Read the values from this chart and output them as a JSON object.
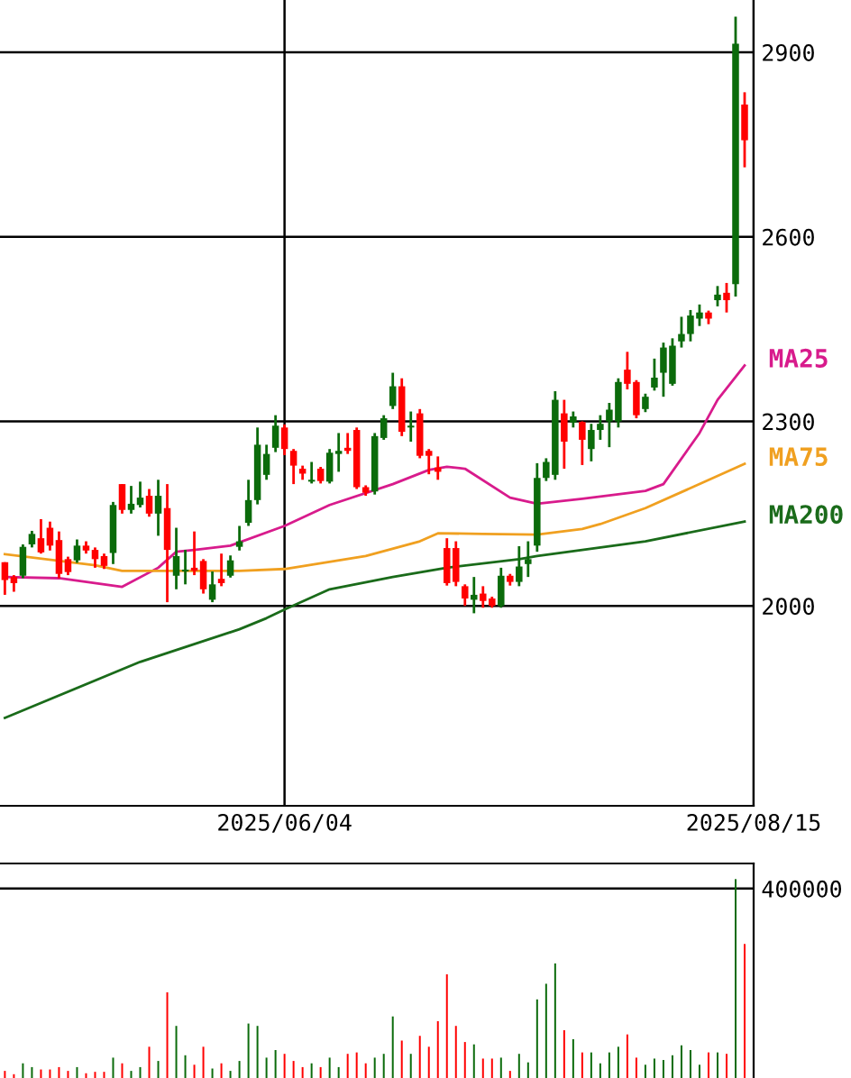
{
  "chart_data": [
    {
      "type": "candlestick",
      "categories": [
        null,
        null,
        null,
        null,
        null,
        null,
        null,
        null,
        null,
        null,
        null,
        null,
        null,
        null,
        null,
        null,
        null,
        null,
        null,
        null,
        null,
        null,
        null,
        null,
        null,
        null,
        null,
        null,
        null,
        null,
        null,
        "2025/06/04",
        null,
        null,
        null,
        null,
        null,
        null,
        null,
        null,
        null,
        null,
        null,
        null,
        null,
        null,
        null,
        null,
        null,
        null,
        null,
        null,
        null,
        null,
        null,
        null,
        null,
        null,
        null,
        null,
        null,
        null,
        null,
        null,
        null,
        null,
        null,
        null,
        null,
        null,
        null,
        null,
        null,
        null,
        null,
        null,
        null,
        null,
        null,
        null,
        null,
        null,
        null,
        "2025/08/15"
      ],
      "ohlc": [
        [
          2071,
          2071,
          2018,
          2042
        ],
        [
          2047,
          2050,
          2023,
          2037
        ],
        [
          2049,
          2100,
          2045,
          2096
        ],
        [
          2100,
          2122,
          2095,
          2117
        ],
        [
          2110,
          2141,
          2085,
          2087
        ],
        [
          2127,
          2137,
          2090,
          2098
        ],
        [
          2107,
          2121,
          2045,
          2052
        ],
        [
          2076,
          2080,
          2050,
          2055
        ],
        [
          2074,
          2108,
          2070,
          2098
        ],
        [
          2098,
          2105,
          2085,
          2090
        ],
        [
          2091,
          2095,
          2062,
          2076
        ],
        [
          2081,
          2085,
          2060,
          2065
        ],
        [
          2086,
          2169,
          2068,
          2164
        ],
        [
          2198,
          2198,
          2150,
          2156
        ],
        [
          2156,
          2195,
          2150,
          2166
        ],
        [
          2164,
          2202,
          2160,
          2176
        ],
        [
          2179,
          2190,
          2145,
          2150
        ],
        [
          2150,
          2205,
          2114,
          2179
        ],
        [
          2159,
          2198,
          2006,
          2091
        ],
        [
          2049,
          2127,
          2027,
          2081
        ],
        [
          2056,
          2091,
          2035,
          2059
        ],
        [
          2062,
          2121,
          2050,
          2057
        ],
        [
          2073,
          2076,
          2020,
          2027
        ],
        [
          2010,
          2056,
          2006,
          2035
        ],
        [
          2044,
          2085,
          2032,
          2037
        ],
        [
          2049,
          2082,
          2046,
          2074
        ],
        [
          2096,
          2130,
          2090,
          2105
        ],
        [
          2135,
          2205,
          2130,
          2172
        ],
        [
          2172,
          2290,
          2165,
          2262
        ],
        [
          2213,
          2262,
          2205,
          2247
        ],
        [
          2257,
          2310,
          2250,
          2293
        ],
        [
          2290,
          2295,
          2245,
          2255
        ],
        [
          2252,
          2255,
          2198,
          2228
        ],
        [
          2223,
          2228,
          2205,
          2215
        ],
        [
          2202,
          2234,
          2199,
          2205
        ],
        [
          2223,
          2226,
          2199,
          2203
        ],
        [
          2202,
          2255,
          2199,
          2249
        ],
        [
          2247,
          2281,
          2218,
          2252
        ],
        [
          2257,
          2281,
          2247,
          2252
        ],
        [
          2286,
          2290,
          2190,
          2193
        ],
        [
          2193,
          2196,
          2179,
          2184
        ],
        [
          2186,
          2281,
          2181,
          2276
        ],
        [
          2273,
          2310,
          2270,
          2305
        ],
        [
          2325,
          2379,
          2320,
          2357
        ],
        [
          2357,
          2370,
          2276,
          2283
        ],
        [
          2290,
          2316,
          2267,
          2293
        ],
        [
          2313,
          2320,
          2240,
          2244
        ],
        [
          2252,
          2255,
          2214,
          2244
        ],
        [
          2225,
          2243,
          2205,
          2218
        ],
        [
          2094,
          2110,
          2033,
          2037
        ],
        [
          2094,
          2105,
          2032,
          2039
        ],
        [
          2032,
          2035,
          2000,
          2012
        ],
        [
          2010,
          2047,
          1988,
          2018
        ],
        [
          2020,
          2032,
          1997,
          2008
        ],
        [
          2012,
          2015,
          1997,
          2000
        ],
        [
          2000,
          2062,
          1997,
          2049
        ],
        [
          2049,
          2052,
          2033,
          2039
        ],
        [
          2039,
          2097,
          2032,
          2064
        ],
        [
          2068,
          2105,
          2047,
          2076
        ],
        [
          2098,
          2232,
          2088,
          2208
        ],
        [
          2208,
          2240,
          2203,
          2234
        ],
        [
          2213,
          2349,
          2205,
          2335
        ],
        [
          2313,
          2335,
          2223,
          2267
        ],
        [
          2298,
          2316,
          2290,
          2308
        ],
        [
          2299,
          2300,
          2229,
          2270
        ],
        [
          2255,
          2296,
          2235,
          2286
        ],
        [
          2286,
          2310,
          2270,
          2296
        ],
        [
          2300,
          2330,
          2258,
          2319
        ],
        [
          2300,
          2370,
          2290,
          2364
        ],
        [
          2384,
          2413,
          2352,
          2361
        ],
        [
          2364,
          2367,
          2305,
          2310
        ],
        [
          2320,
          2345,
          2315,
          2340
        ],
        [
          2355,
          2402,
          2350,
          2371
        ],
        [
          2379,
          2428,
          2340,
          2420
        ],
        [
          2361,
          2435,
          2358,
          2423
        ],
        [
          2430,
          2470,
          2420,
          2442
        ],
        [
          2442,
          2481,
          2430,
          2472
        ],
        [
          2467,
          2490,
          2455,
          2477
        ],
        [
          2477,
          2480,
          2458,
          2467
        ],
        [
          2497,
          2520,
          2487,
          2506
        ],
        [
          2509,
          2525,
          2477,
          2497
        ],
        [
          2523,
          2958,
          2503,
          2914
        ],
        [
          2815,
          2835,
          2713,
          2757
        ],
        null
      ],
      "colors": [
        "#ff0000",
        "#ff0000",
        "#0b6b0b",
        "#0b6b0b",
        "#ff0000",
        "#ff0000",
        "#ff0000",
        "#ff0000",
        "#0b6b0b",
        "#ff0000",
        "#ff0000",
        "#ff0000",
        "#0b6b0b",
        "#ff0000",
        "#0b6b0b",
        "#0b6b0b",
        "#ff0000",
        "#0b6b0b",
        "#ff0000",
        "#0b6b0b",
        "#0b6b0b",
        "#ff0000",
        "#ff0000",
        "#0b6b0b",
        "#ff0000",
        "#0b6b0b",
        "#0b6b0b",
        "#0b6b0b",
        "#0b6b0b",
        "#0b6b0b",
        "#0b6b0b",
        "#ff0000",
        "#ff0000",
        "#ff0000",
        "#0b6b0b",
        "#ff0000",
        "#0b6b0b",
        "#0b6b0b",
        "#ff0000",
        "#ff0000",
        "#ff0000",
        "#0b6b0b",
        "#0b6b0b",
        "#0b6b0b",
        "#ff0000",
        "#0b6b0b",
        "#ff0000",
        "#ff0000",
        "#ff0000",
        "#ff0000",
        "#ff0000",
        "#ff0000",
        "#0b6b0b",
        "#ff0000",
        "#ff0000",
        "#0b6b0b",
        "#ff0000",
        "#0b6b0b",
        "#0b6b0b",
        "#0b6b0b",
        "#0b6b0b",
        "#0b6b0b",
        "#ff0000",
        "#0b6b0b",
        "#ff0000",
        "#0b6b0b",
        "#0b6b0b",
        "#0b6b0b",
        "#0b6b0b",
        "#ff0000",
        "#ff0000",
        "#0b6b0b",
        "#0b6b0b",
        "#0b6b0b",
        "#0b6b0b",
        "#0b6b0b",
        "#0b6b0b",
        "#0b6b0b",
        "#ff0000",
        "#0b6b0b",
        "#ff0000",
        "#0b6b0b",
        "#ff0000",
        null
      ],
      "series": [
        {
          "name": "MA25",
          "type": "line",
          "color": "#d81b8c",
          "values": [
            2047,
            null,
            null,
            null,
            null,
            null,
            2045,
            null,
            null,
            null,
            null,
            null,
            null,
            2031,
            null,
            null,
            null,
            2062,
            null,
            2088,
            null,
            2091,
            null,
            null,
            null,
            2098,
            null,
            null,
            null,
            null,
            null,
            2130,
            null,
            null,
            null,
            null,
            2164,
            null,
            null,
            null,
            null,
            null,
            null,
            2198,
            null,
            null,
            null,
            2221,
            null,
            2226,
            null,
            2223,
            null,
            null,
            null,
            null,
            2176,
            null,
            null,
            2166,
            null,
            null,
            null,
            null,
            2174,
            null,
            null,
            null,
            null,
            null,
            null,
            2187,
            null,
            2198,
            null,
            null,
            null,
            2281,
            null,
            2335,
            null,
            null,
            2391,
            null
          ]
        },
        {
          "name": "MA75",
          "type": "line",
          "color": "#f0a020",
          "values": [
            2084,
            null,
            null,
            null,
            null,
            null,
            null,
            null,
            null,
            null,
            2066,
            null,
            null,
            2057,
            null,
            null,
            null,
            null,
            null,
            null,
            2057,
            null,
            null,
            null,
            null,
            null,
            2057,
            null,
            null,
            null,
            null,
            2060,
            null,
            null,
            null,
            null,
            null,
            null,
            null,
            null,
            2081,
            null,
            null,
            null,
            null,
            null,
            2105,
            null,
            2118,
            null,
            null,
            null,
            null,
            2117,
            null,
            null,
            null,
            null,
            null,
            2116,
            null,
            null,
            null,
            null,
            2125,
            null,
            2133,
            null,
            null,
            null,
            null,
            2159,
            null,
            null,
            null,
            null,
            null,
            2198,
            null,
            null,
            null,
            null,
            2231,
            null
          ]
        },
        {
          "name": "MA200",
          "type": "line",
          "color": "#1a6b1a",
          "values": [
            1818,
            null,
            null,
            null,
            null,
            null,
            null,
            null,
            null,
            null,
            null,
            null,
            null,
            null,
            null,
            1909,
            null,
            null,
            null,
            null,
            null,
            null,
            null,
            null,
            null,
            null,
            1962,
            null,
            null,
            1980,
            null,
            1994,
            null,
            null,
            null,
            null,
            2027,
            null,
            null,
            null,
            null,
            null,
            null,
            2047,
            null,
            null,
            null,
            null,
            null,
            2062,
            null,
            null,
            null,
            null,
            null,
            null,
            null,
            2076,
            null,
            2081,
            null,
            null,
            null,
            null,
            2091,
            null,
            null,
            null,
            null,
            null,
            null,
            2105,
            null,
            null,
            null,
            null,
            null,
            null,
            null,
            null,
            null,
            null,
            2137,
            null
          ]
        }
      ],
      "ylim": [
        1675,
        2985
      ],
      "yticks": [
        2000,
        2300,
        2600,
        2900
      ],
      "grid": true
    },
    {
      "type": "bar",
      "categories": [
        null,
        null,
        null,
        null,
        null,
        null,
        null,
        null,
        null,
        null,
        null,
        null,
        null,
        null,
        null,
        null,
        null,
        null,
        null,
        null,
        null,
        null,
        null,
        null,
        null,
        null,
        null,
        null,
        null,
        null,
        null,
        null,
        null,
        null,
        null,
        null,
        null,
        null,
        null,
        null,
        null,
        null,
        null,
        null,
        null,
        null,
        null,
        null,
        null,
        null,
        null,
        null,
        null,
        null,
        null,
        null,
        null,
        null,
        null,
        null,
        null,
        null,
        null,
        null,
        null,
        null,
        null,
        null,
        null,
        null,
        null,
        null,
        null,
        null,
        null,
        null,
        null,
        null,
        null,
        null,
        null,
        null,
        null,
        null
      ],
      "values": [
        15000,
        8000,
        31000,
        23000,
        18000,
        18000,
        23000,
        15000,
        23000,
        10000,
        13000,
        13000,
        43000,
        31000,
        15000,
        23000,
        66000,
        36000,
        181000,
        110000,
        48000,
        28000,
        66000,
        20000,
        31000,
        15000,
        36000,
        115000,
        110000,
        43000,
        59000,
        51000,
        36000,
        23000,
        31000,
        23000,
        43000,
        23000,
        51000,
        54000,
        31000,
        43000,
        51000,
        130000,
        79000,
        51000,
        89000,
        66000,
        120000,
        219000,
        110000,
        76000,
        71000,
        41000,
        41000,
        43000,
        15000,
        51000,
        33000,
        166000,
        199000,
        242000,
        101000,
        82000,
        54000,
        54000,
        31000,
        54000,
        66000,
        92000,
        43000,
        28000,
        41000,
        38000,
        48000,
        69000,
        59000,
        28000,
        54000,
        54000,
        51000,
        420000,
        283000,
        null
      ],
      "colors": [
        "#ff0000",
        "#ff0000",
        "#0b6b0b",
        "#0b6b0b",
        "#ff0000",
        "#ff0000",
        "#ff0000",
        "#ff0000",
        "#0b6b0b",
        "#ff0000",
        "#ff0000",
        "#ff0000",
        "#0b6b0b",
        "#ff0000",
        "#0b6b0b",
        "#0b6b0b",
        "#ff0000",
        "#0b6b0b",
        "#ff0000",
        "#0b6b0b",
        "#0b6b0b",
        "#ff0000",
        "#ff0000",
        "#0b6b0b",
        "#ff0000",
        "#0b6b0b",
        "#0b6b0b",
        "#0b6b0b",
        "#0b6b0b",
        "#0b6b0b",
        "#0b6b0b",
        "#ff0000",
        "#ff0000",
        "#ff0000",
        "#0b6b0b",
        "#ff0000",
        "#0b6b0b",
        "#0b6b0b",
        "#ff0000",
        "#ff0000",
        "#ff0000",
        "#0b6b0b",
        "#0b6b0b",
        "#0b6b0b",
        "#ff0000",
        "#0b6b0b",
        "#ff0000",
        "#ff0000",
        "#ff0000",
        "#ff0000",
        "#ff0000",
        "#ff0000",
        "#0b6b0b",
        "#ff0000",
        "#ff0000",
        "#0b6b0b",
        "#ff0000",
        "#0b6b0b",
        "#0b6b0b",
        "#0b6b0b",
        "#0b6b0b",
        "#0b6b0b",
        "#ff0000",
        "#0b6b0b",
        "#ff0000",
        "#0b6b0b",
        "#0b6b0b",
        "#0b6b0b",
        "#0b6b0b",
        "#ff0000",
        "#ff0000",
        "#0b6b0b",
        "#0b6b0b",
        "#0b6b0b",
        "#0b6b0b",
        "#0b6b0b",
        "#0b6b0b",
        "#0b6b0b",
        "#ff0000",
        "#0b6b0b",
        "#ff0000",
        "#0b6b0b",
        "#ff0000",
        null
      ],
      "ylim": [
        0,
        453000
      ],
      "yticks": [
        400000
      ],
      "grid": "y"
    }
  ]
}
